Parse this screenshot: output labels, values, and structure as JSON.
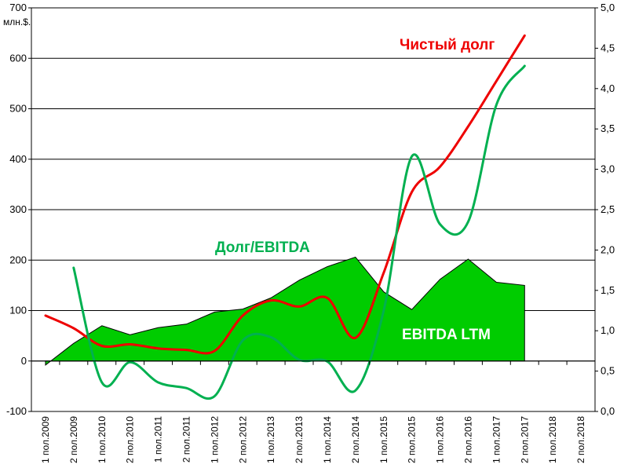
{
  "chart_data": {
    "type": "line",
    "unit_label": "млн.$.",
    "x": [
      "1 пол.2009",
      "2 пол.2009",
      "1 пол.2010",
      "2 пол.2010",
      "1 пол.2011",
      "2 пол.2011",
      "1 пол.2012",
      "2 пол.2012",
      "1 пол.2013",
      "2 пол.2013",
      "1 пол.2014",
      "2 пол.2014",
      "1 пол.2015",
      "2 пол.2015",
      "1 пол.2016",
      "2 пол.2016",
      "1 пол.2017",
      "2 пол.2017",
      "1 пол.2018",
      "2 пол.2018"
    ],
    "y_left": {
      "min": -100,
      "max": 700,
      "step": 100,
      "ticks": [
        "-100",
        "0",
        "100",
        "200",
        "300",
        "400",
        "500",
        "600",
        "700"
      ]
    },
    "y_right": {
      "min": 0,
      "max": 5,
      "step": 0.5,
      "ticks": [
        "0,0",
        "0,5",
        "1,0",
        "1,5",
        "2,0",
        "2,5",
        "3,0",
        "3,5",
        "4,0",
        "4,5",
        "5,0"
      ]
    },
    "grid": true,
    "series": [
      {
        "name": "EBITDA LTM",
        "kind": "area",
        "axis": "left",
        "color": "#00cc00",
        "values": [
          -8,
          35,
          70,
          52,
          66,
          73,
          97,
          103,
          125,
          160,
          187,
          206,
          137,
          102,
          162,
          202,
          156,
          150,
          null,
          null
        ]
      },
      {
        "name": "Чистый долг",
        "kind": "line",
        "axis": "left",
        "color": "#ee0000",
        "values": [
          90,
          65,
          30,
          33,
          25,
          22,
          20,
          90,
          120,
          108,
          125,
          46,
          175,
          335,
          385,
          465,
          555,
          645,
          null,
          null
        ]
      },
      {
        "name": "Долг/EBITDA",
        "kind": "line",
        "axis": "right",
        "color": "#00b050",
        "values": [
          null,
          1.78,
          0.36,
          0.61,
          0.36,
          0.29,
          0.19,
          0.88,
          0.92,
          0.64,
          0.62,
          0.26,
          1.25,
          3.16,
          2.32,
          2.35,
          3.8,
          4.28,
          null,
          null
        ]
      }
    ],
    "annotations": [
      "Чистый долг",
      "Долг/EBITDA",
      "EBITDA LTM"
    ]
  }
}
